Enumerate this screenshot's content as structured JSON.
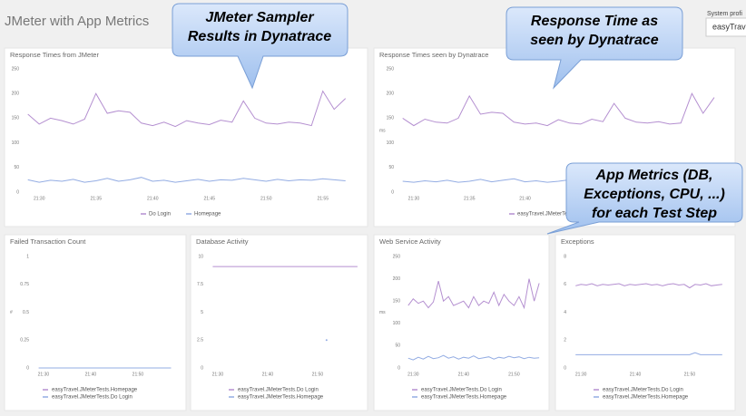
{
  "header": {
    "title": "JMeter with App Metrics",
    "profile_label": "System profi",
    "profile_value": "easyTrav"
  },
  "callouts": [
    {
      "lines": [
        "JMeter Sampler",
        "Results in Dynatrace"
      ]
    },
    {
      "lines": [
        "Response Time as",
        "seen by Dynatrace"
      ]
    },
    {
      "lines": [
        "App Metrics (DB,",
        "Exceptions, CPU, ...)",
        "for each Test Step"
      ]
    }
  ],
  "chart_data": [
    {
      "type": "line",
      "title": "Response Times from JMeter",
      "legend": "bottom",
      "grid": false,
      "x": [
        1289,
        1290,
        1291,
        1292,
        1293,
        1294,
        1295,
        1296,
        1297,
        1298,
        1299,
        1300,
        1301,
        1302,
        1303,
        1304,
        1305,
        1306,
        1307,
        1308,
        1309,
        1310,
        1311,
        1312,
        1313,
        1314,
        1315,
        1316,
        1317
      ],
      "xlim": [
        1288.7,
        1317.9
      ],
      "xticks": [
        {
          "value": 1290,
          "label": "21:30"
        },
        {
          "value": 1295,
          "label": "21:35"
        },
        {
          "value": 1300,
          "label": "21:40"
        },
        {
          "value": 1305,
          "label": "21:45"
        },
        {
          "value": 1310,
          "label": "21:50"
        },
        {
          "value": 1315,
          "label": "21:55"
        }
      ],
      "ylim": [
        0,
        250
      ],
      "yticks": [
        0,
        50,
        100,
        150,
        200,
        250
      ],
      "series": [
        {
          "name": "Do Login",
          "color": "#b48fd0",
          "values": [
            158,
            138,
            150,
            145,
            138,
            148,
            200,
            160,
            165,
            162,
            140,
            135,
            142,
            133,
            145,
            140,
            137,
            146,
            142,
            185,
            150,
            140,
            138,
            142,
            140,
            135,
            205,
            168,
            190
          ]
        },
        {
          "name": "Homepage",
          "color": "#93ace3",
          "values": [
            25,
            20,
            24,
            22,
            26,
            20,
            23,
            28,
            22,
            25,
            30,
            22,
            24,
            20,
            23,
            26,
            22,
            25,
            24,
            28,
            25,
            22,
            26,
            23,
            25,
            24,
            27,
            25,
            23
          ]
        }
      ]
    },
    {
      "type": "line",
      "title": "Response Times seen by Dynatrace",
      "ylabel": "ms",
      "legend": "bottom",
      "grid": false,
      "x": [
        1289,
        1290,
        1291,
        1292,
        1293,
        1294,
        1295,
        1296,
        1297,
        1298,
        1299,
        1300,
        1301,
        1302,
        1303,
        1304,
        1305,
        1306,
        1307,
        1308,
        1309,
        1310,
        1311,
        1312,
        1313,
        1314,
        1315,
        1316,
        1317
      ],
      "xlim": [
        1288.7,
        1317.9
      ],
      "xticks": [
        {
          "value": 1290,
          "label": "21:30"
        },
        {
          "value": 1295,
          "label": "21:35"
        },
        {
          "value": 1300,
          "label": "21:40"
        },
        {
          "value": 1305,
          "label": "21:45"
        },
        {
          "value": 1310,
          "label": "21:50"
        },
        {
          "value": 1315,
          "label": "21:55"
        }
      ],
      "ylim": [
        0,
        250
      ],
      "yticks": [
        0,
        50,
        100,
        150,
        200,
        250
      ],
      "series": [
        {
          "name": "easyTravel.JMeterTests.Do Login",
          "color": "#b48fd0",
          "values": [
            150,
            135,
            148,
            142,
            140,
            150,
            195,
            158,
            162,
            160,
            142,
            138,
            140,
            135,
            147,
            140,
            138,
            148,
            143,
            180,
            150,
            142,
            140,
            143,
            138,
            140,
            200,
            160,
            192
          ]
        },
        {
          "name": "easyTravel.JMeterTests.Homepage",
          "color": "#93ace3",
          "values": [
            22,
            20,
            23,
            21,
            24,
            20,
            22,
            26,
            21,
            24,
            27,
            21,
            23,
            20,
            22,
            25,
            21,
            24,
            23,
            26,
            24,
            21,
            25,
            22,
            24,
            23,
            26,
            24,
            22
          ]
        }
      ]
    },
    {
      "type": "line",
      "title": "Failed Transaction Count",
      "ylabel": "#",
      "legend": "bottom",
      "grid": false,
      "x": [
        1289,
        1300,
        1310,
        1317
      ],
      "xlim": [
        1288.1,
        1317.7
      ],
      "xticks": [
        {
          "value": 1290,
          "label": "21:30"
        },
        {
          "value": 1300,
          "label": "21:40"
        },
        {
          "value": 1310,
          "label": "21:50"
        }
      ],
      "ylim": [
        0,
        1
      ],
      "yticks": [
        0,
        0.25,
        0.5,
        0.75,
        1
      ],
      "series": [
        {
          "name": "easyTravel.JMeterTests.Homepage",
          "color": "#b48fd0",
          "values": [
            0,
            0,
            0,
            0
          ]
        },
        {
          "name": "easyTravel.JMeterTests.Do Login",
          "color": "#93ace3",
          "values": [
            0,
            0,
            0,
            0
          ]
        }
      ]
    },
    {
      "type": "line",
      "title": "Database Activity",
      "legend": "bottom",
      "grid": false,
      "x": [
        1289,
        1300,
        1311.8,
        1318
      ],
      "xlim": [
        1288.2,
        1318.2
      ],
      "xticks": [
        {
          "value": 1290,
          "label": "21:30"
        },
        {
          "value": 1300,
          "label": "21:40"
        },
        {
          "value": 1310,
          "label": "21:50"
        }
      ],
      "ylim": [
        0,
        10
      ],
      "yticks": [
        0,
        2.5,
        5,
        7.5,
        10
      ],
      "series": [
        {
          "name": "easyTravel.JMeterTests.Do Login",
          "color": "#b48fd0",
          "values": [
            9.1,
            9.1,
            9.1,
            9.1
          ]
        },
        {
          "name": "easyTravel.JMeterTests.Homepage",
          "color": "#93ace3",
          "values": [
            null,
            null,
            2.5,
            null
          ]
        }
      ]
    },
    {
      "type": "line",
      "title": "Web Service Activity",
      "ylabel": "ms",
      "legend": "bottom",
      "grid": false,
      "x": [
        1289,
        1290,
        1291,
        1292,
        1293,
        1294,
        1295,
        1296,
        1297,
        1298,
        1299,
        1300,
        1301,
        1302,
        1303,
        1304,
        1305,
        1306,
        1307,
        1308,
        1309,
        1310,
        1311,
        1312,
        1313,
        1314,
        1315
      ],
      "xlim": [
        1288.5,
        1315.7
      ],
      "xticks": [
        {
          "value": 1290,
          "label": "21:30"
        },
        {
          "value": 1300,
          "label": "21:40"
        },
        {
          "value": 1310,
          "label": "21:50"
        }
      ],
      "ylim": [
        0,
        250
      ],
      "yticks": [
        0,
        50,
        100,
        150,
        200,
        250
      ],
      "series": [
        {
          "name": "easyTravel.JMeterTests.Do Login",
          "color": "#b48fd0",
          "values": [
            140,
            155,
            145,
            150,
            135,
            148,
            195,
            150,
            160,
            140,
            145,
            150,
            135,
            160,
            140,
            150,
            145,
            170,
            140,
            165,
            150,
            140,
            160,
            135,
            200,
            150,
            190
          ]
        },
        {
          "name": "easyTravel.JMeterTests.Homepage",
          "color": "#93ace3",
          "values": [
            22,
            18,
            24,
            20,
            26,
            21,
            23,
            28,
            22,
            25,
            20,
            24,
            22,
            27,
            21,
            23,
            25,
            20,
            24,
            22,
            26,
            23,
            25,
            21,
            24,
            22,
            23
          ]
        }
      ]
    },
    {
      "type": "line",
      "title": "Exceptions",
      "legend": "bottom",
      "grid": false,
      "x": [
        1289,
        1290,
        1291,
        1292,
        1293,
        1294,
        1295,
        1296,
        1297,
        1298,
        1299,
        1300,
        1301,
        1302,
        1303,
        1304,
        1305,
        1306,
        1307,
        1308,
        1309,
        1310,
        1311,
        1312,
        1313,
        1314,
        1315,
        1316
      ],
      "xlim": [
        1288.3,
        1316.7
      ],
      "xticks": [
        {
          "value": 1290,
          "label": "21:30"
        },
        {
          "value": 1300,
          "label": "21:40"
        },
        {
          "value": 1310,
          "label": "21:50"
        }
      ],
      "ylim": [
        0,
        8
      ],
      "yticks": [
        0,
        2,
        4,
        6,
        8
      ],
      "series": [
        {
          "name": "easyTravel.JMeterTests.Do Login",
          "color": "#b48fd0",
          "values": [
            5.9,
            6,
            5.95,
            6.05,
            5.9,
            6,
            5.95,
            6,
            6.05,
            5.9,
            6,
            5.95,
            6,
            6.05,
            5.95,
            6,
            5.9,
            6,
            6.05,
            5.95,
            6,
            5.75,
            6,
            5.95,
            6.05,
            5.9,
            5.95,
            6
          ]
        },
        {
          "name": "easyTravel.JMeterTests.Homepage",
          "color": "#93ace3",
          "values": [
            0.95,
            0.95,
            0.95,
            0.95,
            0.95,
            0.95,
            0.95,
            0.95,
            0.95,
            0.95,
            0.95,
            0.95,
            0.95,
            0.95,
            0.95,
            0.95,
            0.95,
            0.95,
            0.95,
            0.95,
            0.95,
            0.95,
            1.1,
            0.95,
            0.95,
            0.95,
            0.95,
            0.95
          ]
        }
      ]
    }
  ]
}
